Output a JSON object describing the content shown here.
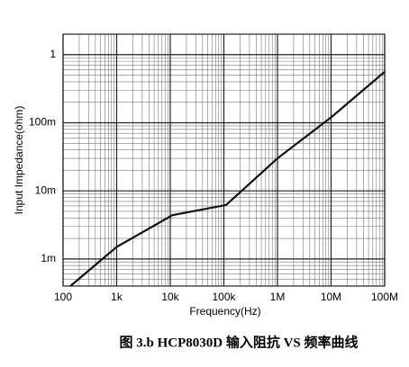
{
  "chart_data": {
    "type": "line",
    "x_label": "Frequency(Hz)",
    "y_label": "Input Impedance(ohm)",
    "caption": "图 3.b HCP8030D 输入阻抗 VS 频率曲线",
    "log_x": true,
    "log_y": true,
    "grid": true,
    "minor_grid": true,
    "xlim": [
      100,
      100000000
    ],
    "ylim": [
      0.0004,
      2
    ],
    "xticks": [
      {
        "value": 100,
        "label": "100"
      },
      {
        "value": 1000,
        "label": "1k"
      },
      {
        "value": 10000,
        "label": "10k"
      },
      {
        "value": 100000,
        "label": "100k"
      },
      {
        "value": 1000000,
        "label": "1M"
      },
      {
        "value": 10000000,
        "label": "10M"
      },
      {
        "value": 100000000,
        "label": "100M"
      }
    ],
    "yticks": [
      {
        "value": 0.001,
        "label": "1m"
      },
      {
        "value": 0.01,
        "label": "10m"
      },
      {
        "value": 0.1,
        "label": "100m"
      },
      1
    ],
    "series": [
      {
        "color": "#111111",
        "x": [
          137,
          1000,
          11000,
          110000,
          1000000,
          10000000,
          100000000
        ],
        "values": [
          0.0004,
          0.0015,
          0.0044,
          0.0062,
          0.03,
          0.12,
          0.56
        ]
      }
    ]
  }
}
